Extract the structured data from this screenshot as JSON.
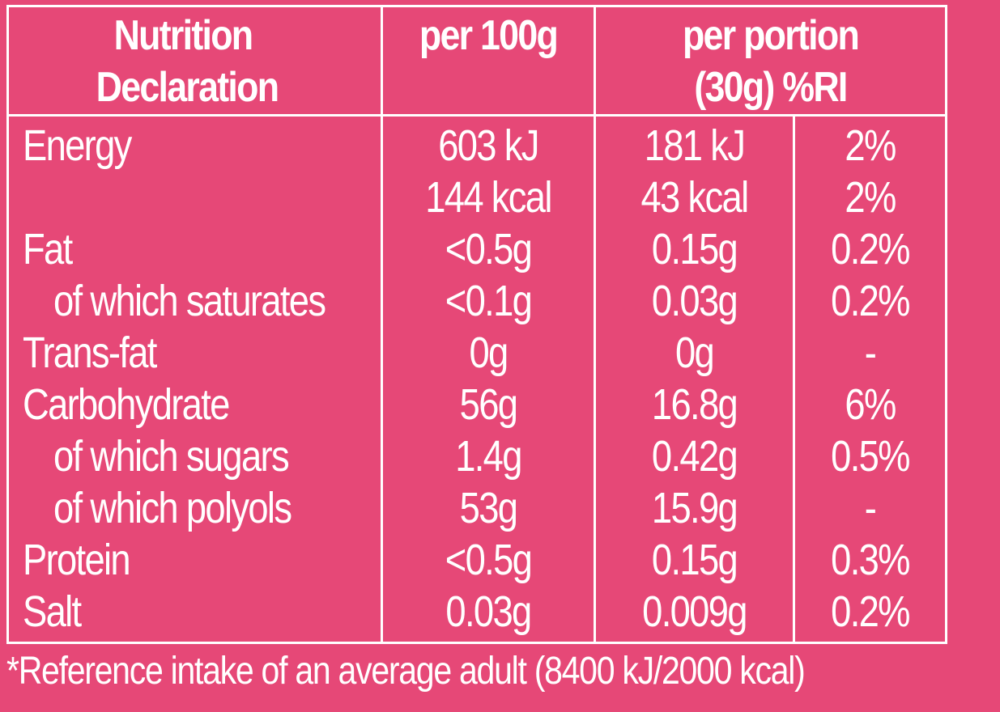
{
  "theme": {
    "background": "#E64877",
    "ink": "#FFFFFF"
  },
  "header": {
    "col1_line1": "Nutrition",
    "col1_line2": "Declaration",
    "col2": "per 100g",
    "col3_line1": "per portion",
    "col3_line2": "(30g) %RI"
  },
  "rows": [
    {
      "label": "Energy",
      "per100": "603 kJ",
      "portion": "181 kJ",
      "ri": "2%"
    },
    {
      "label": "",
      "per100": "144 kcal",
      "portion": "43 kcal",
      "ri": "2%"
    },
    {
      "label": "Fat",
      "per100": "<0.5g",
      "portion": "0.15g",
      "ri": "0.2%"
    },
    {
      "label": "of which saturates",
      "per100": "<0.1g",
      "portion": "0.03g",
      "ri": "0.2%"
    },
    {
      "label": "Trans-fat",
      "per100": "0g",
      "portion": "0g",
      "ri": "-"
    },
    {
      "label": "Carbohydrate",
      "per100": "56g",
      "portion": "16.8g",
      "ri": "6%"
    },
    {
      "label": "of which sugars",
      "per100": "1.4g",
      "portion": "0.42g",
      "ri": "0.5%"
    },
    {
      "label": "of which polyols",
      "per100": "53g",
      "portion": "15.9g",
      "ri": "-"
    },
    {
      "label": "Protein",
      "per100": "<0.5g",
      "portion": "0.15g",
      "ri": "0.3%"
    },
    {
      "label": "Salt",
      "per100": "0.03g",
      "portion": "0.009g",
      "ri": "0.2%"
    }
  ],
  "footnote": "*Reference intake of an average adult (8400 kJ/2000 kcal)"
}
